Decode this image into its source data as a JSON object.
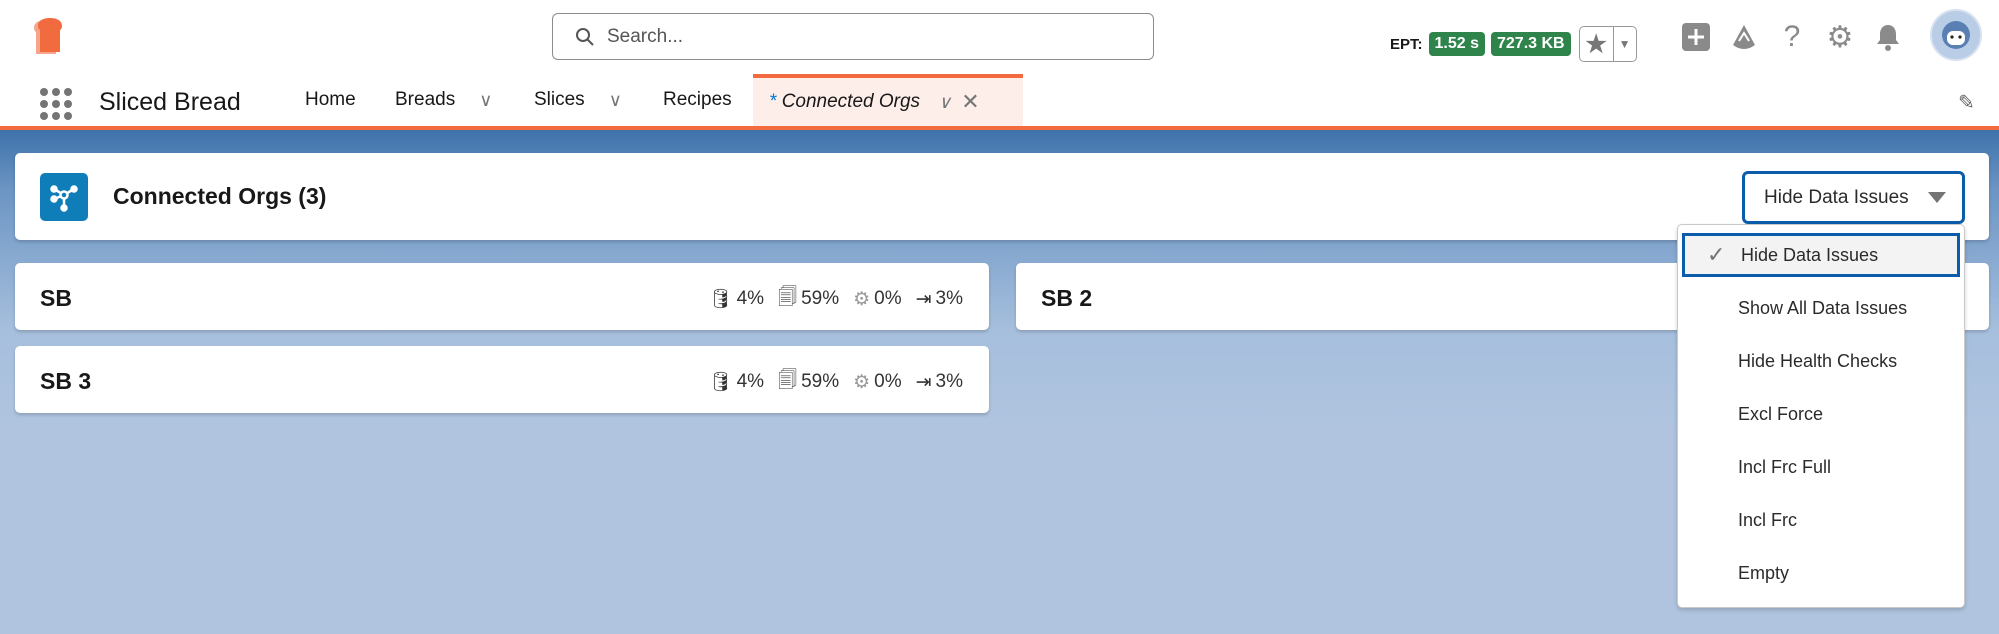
{
  "app": {
    "name": "Sliced Bread",
    "brand_color": "#f16b3f"
  },
  "search": {
    "placeholder": "Search..."
  },
  "perf": {
    "label": "EPT:",
    "time": "1.52 s",
    "size": "727.3 KB"
  },
  "header_icons": [
    "favorites-star-icon",
    "add-icon",
    "trailhead-icon",
    "help-icon",
    "setup-gear-icon",
    "notifications-bell-icon",
    "avatar"
  ],
  "nav": {
    "tabs": [
      {
        "label": "Home"
      },
      {
        "label": "Breads"
      },
      {
        "label": "Slices"
      },
      {
        "label": "Recipes"
      },
      {
        "label": "Connected Orgs",
        "dirty": "*"
      }
    ]
  },
  "page": {
    "title": "Connected Orgs (3)",
    "filter": {
      "selected": "Hide Data Issues",
      "options": [
        "Hide Data Issues",
        "Show All Data Issues",
        "Hide Health Checks",
        "Excl Force",
        "Incl Frc Full",
        "Incl Frc",
        "Empty"
      ]
    }
  },
  "orgs": [
    {
      "name": "SB",
      "data": "4%",
      "files": "59%",
      "api": "0%",
      "flows": "3%"
    },
    {
      "name": "SB 2"
    },
    {
      "name": "SB 3",
      "data": "4%",
      "files": "59%",
      "api": "0%",
      "flows": "3%"
    }
  ]
}
